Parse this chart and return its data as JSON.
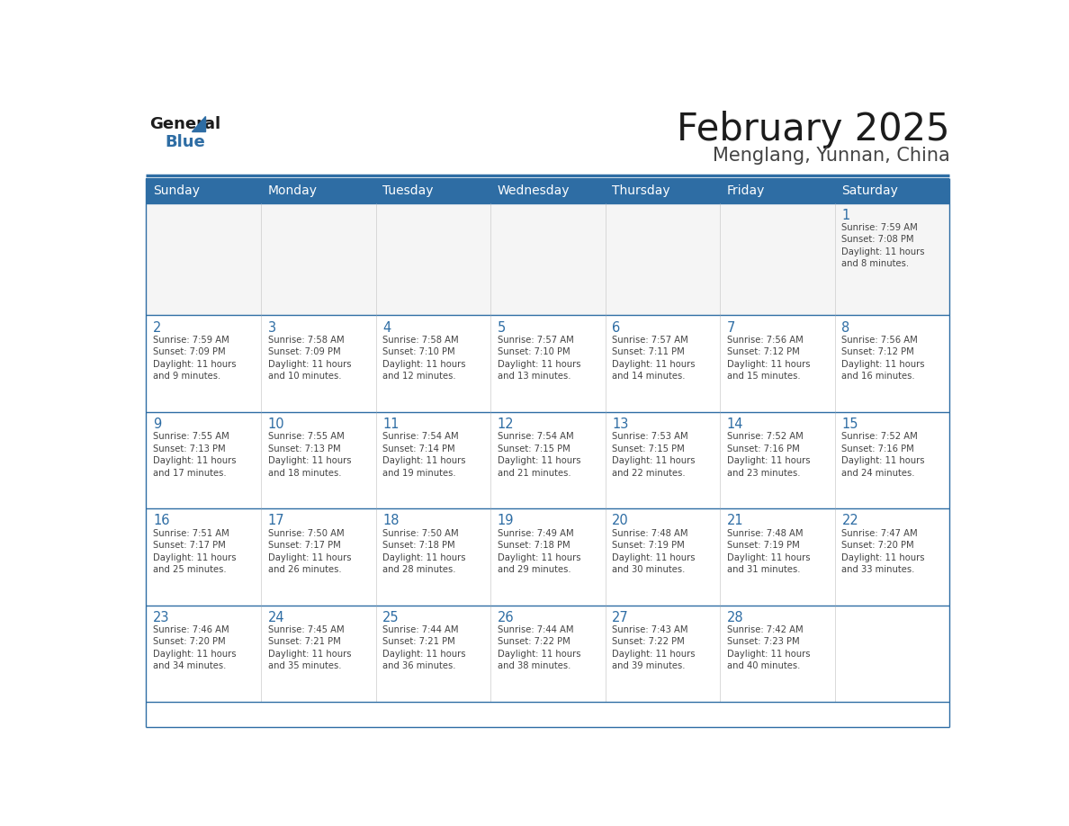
{
  "title": "February 2025",
  "subtitle": "Menglang, Yunnan, China",
  "header_bg": "#2E6DA4",
  "header_text_color": "#FFFFFF",
  "cell_bg": "#FFFFFF",
  "cell_bg_first_row": "#F5F5F5",
  "day_number_color": "#2E6DA4",
  "text_color": "#444444",
  "border_color": "#2E6DA4",
  "days_of_week": [
    "Sunday",
    "Monday",
    "Tuesday",
    "Wednesday",
    "Thursday",
    "Friday",
    "Saturday"
  ],
  "weeks": [
    [
      {
        "day": null,
        "info": null
      },
      {
        "day": null,
        "info": null
      },
      {
        "day": null,
        "info": null
      },
      {
        "day": null,
        "info": null
      },
      {
        "day": null,
        "info": null
      },
      {
        "day": null,
        "info": null
      },
      {
        "day": 1,
        "info": "Sunrise: 7:59 AM\nSunset: 7:08 PM\nDaylight: 11 hours\nand 8 minutes."
      }
    ],
    [
      {
        "day": 2,
        "info": "Sunrise: 7:59 AM\nSunset: 7:09 PM\nDaylight: 11 hours\nand 9 minutes."
      },
      {
        "day": 3,
        "info": "Sunrise: 7:58 AM\nSunset: 7:09 PM\nDaylight: 11 hours\nand 10 minutes."
      },
      {
        "day": 4,
        "info": "Sunrise: 7:58 AM\nSunset: 7:10 PM\nDaylight: 11 hours\nand 12 minutes."
      },
      {
        "day": 5,
        "info": "Sunrise: 7:57 AM\nSunset: 7:10 PM\nDaylight: 11 hours\nand 13 minutes."
      },
      {
        "day": 6,
        "info": "Sunrise: 7:57 AM\nSunset: 7:11 PM\nDaylight: 11 hours\nand 14 minutes."
      },
      {
        "day": 7,
        "info": "Sunrise: 7:56 AM\nSunset: 7:12 PM\nDaylight: 11 hours\nand 15 minutes."
      },
      {
        "day": 8,
        "info": "Sunrise: 7:56 AM\nSunset: 7:12 PM\nDaylight: 11 hours\nand 16 minutes."
      }
    ],
    [
      {
        "day": 9,
        "info": "Sunrise: 7:55 AM\nSunset: 7:13 PM\nDaylight: 11 hours\nand 17 minutes."
      },
      {
        "day": 10,
        "info": "Sunrise: 7:55 AM\nSunset: 7:13 PM\nDaylight: 11 hours\nand 18 minutes."
      },
      {
        "day": 11,
        "info": "Sunrise: 7:54 AM\nSunset: 7:14 PM\nDaylight: 11 hours\nand 19 minutes."
      },
      {
        "day": 12,
        "info": "Sunrise: 7:54 AM\nSunset: 7:15 PM\nDaylight: 11 hours\nand 21 minutes."
      },
      {
        "day": 13,
        "info": "Sunrise: 7:53 AM\nSunset: 7:15 PM\nDaylight: 11 hours\nand 22 minutes."
      },
      {
        "day": 14,
        "info": "Sunrise: 7:52 AM\nSunset: 7:16 PM\nDaylight: 11 hours\nand 23 minutes."
      },
      {
        "day": 15,
        "info": "Sunrise: 7:52 AM\nSunset: 7:16 PM\nDaylight: 11 hours\nand 24 minutes."
      }
    ],
    [
      {
        "day": 16,
        "info": "Sunrise: 7:51 AM\nSunset: 7:17 PM\nDaylight: 11 hours\nand 25 minutes."
      },
      {
        "day": 17,
        "info": "Sunrise: 7:50 AM\nSunset: 7:17 PM\nDaylight: 11 hours\nand 26 minutes."
      },
      {
        "day": 18,
        "info": "Sunrise: 7:50 AM\nSunset: 7:18 PM\nDaylight: 11 hours\nand 28 minutes."
      },
      {
        "day": 19,
        "info": "Sunrise: 7:49 AM\nSunset: 7:18 PM\nDaylight: 11 hours\nand 29 minutes."
      },
      {
        "day": 20,
        "info": "Sunrise: 7:48 AM\nSunset: 7:19 PM\nDaylight: 11 hours\nand 30 minutes."
      },
      {
        "day": 21,
        "info": "Sunrise: 7:48 AM\nSunset: 7:19 PM\nDaylight: 11 hours\nand 31 minutes."
      },
      {
        "day": 22,
        "info": "Sunrise: 7:47 AM\nSunset: 7:20 PM\nDaylight: 11 hours\nand 33 minutes."
      }
    ],
    [
      {
        "day": 23,
        "info": "Sunrise: 7:46 AM\nSunset: 7:20 PM\nDaylight: 11 hours\nand 34 minutes."
      },
      {
        "day": 24,
        "info": "Sunrise: 7:45 AM\nSunset: 7:21 PM\nDaylight: 11 hours\nand 35 minutes."
      },
      {
        "day": 25,
        "info": "Sunrise: 7:44 AM\nSunset: 7:21 PM\nDaylight: 11 hours\nand 36 minutes."
      },
      {
        "day": 26,
        "info": "Sunrise: 7:44 AM\nSunset: 7:22 PM\nDaylight: 11 hours\nand 38 minutes."
      },
      {
        "day": 27,
        "info": "Sunrise: 7:43 AM\nSunset: 7:22 PM\nDaylight: 11 hours\nand 39 minutes."
      },
      {
        "day": 28,
        "info": "Sunrise: 7:42 AM\nSunset: 7:23 PM\nDaylight: 11 hours\nand 40 minutes."
      },
      {
        "day": null,
        "info": null
      }
    ]
  ]
}
